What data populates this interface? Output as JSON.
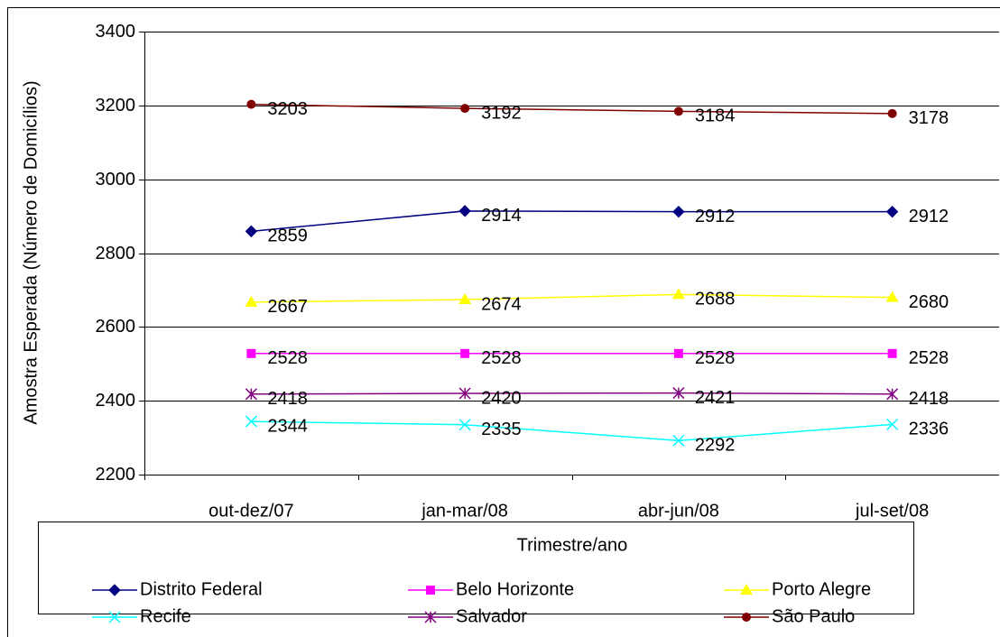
{
  "chart_data": {
    "type": "line",
    "x_label": "Trimestre/ano",
    "y_label": "Amostra Esperada (Número de Domicílios)",
    "categories": [
      "out-dez/07",
      "jan-mar/08",
      "abr-jun/08",
      "jul-set/08"
    ],
    "ylim": [
      2200,
      3400
    ],
    "yticks": [
      2200,
      2400,
      2600,
      2800,
      3000,
      3200,
      3400
    ],
    "grid": true,
    "series": [
      {
        "name": "Distrito Federal",
        "color": "#000080",
        "marker": "diamond",
        "values": [
          2859,
          2914,
          2912,
          2912
        ]
      },
      {
        "name": "Belo Horizonte",
        "color": "#ff00ff",
        "marker": "square",
        "values": [
          2528,
          2528,
          2528,
          2528
        ]
      },
      {
        "name": "Porto Alegre",
        "color": "#ffff00",
        "marker": "triangle",
        "values": [
          2667,
          2674,
          2688,
          2680
        ]
      },
      {
        "name": "Recife",
        "color": "#00ffff",
        "marker": "x",
        "values": [
          2344,
          2335,
          2292,
          2336
        ]
      },
      {
        "name": "Salvador",
        "color": "#800080",
        "marker": "star",
        "values": [
          2418,
          2420,
          2421,
          2418
        ]
      },
      {
        "name": "São Paulo",
        "color": "#800000",
        "marker": "circle",
        "values": [
          3203,
          3192,
          3184,
          3178
        ]
      }
    ]
  }
}
